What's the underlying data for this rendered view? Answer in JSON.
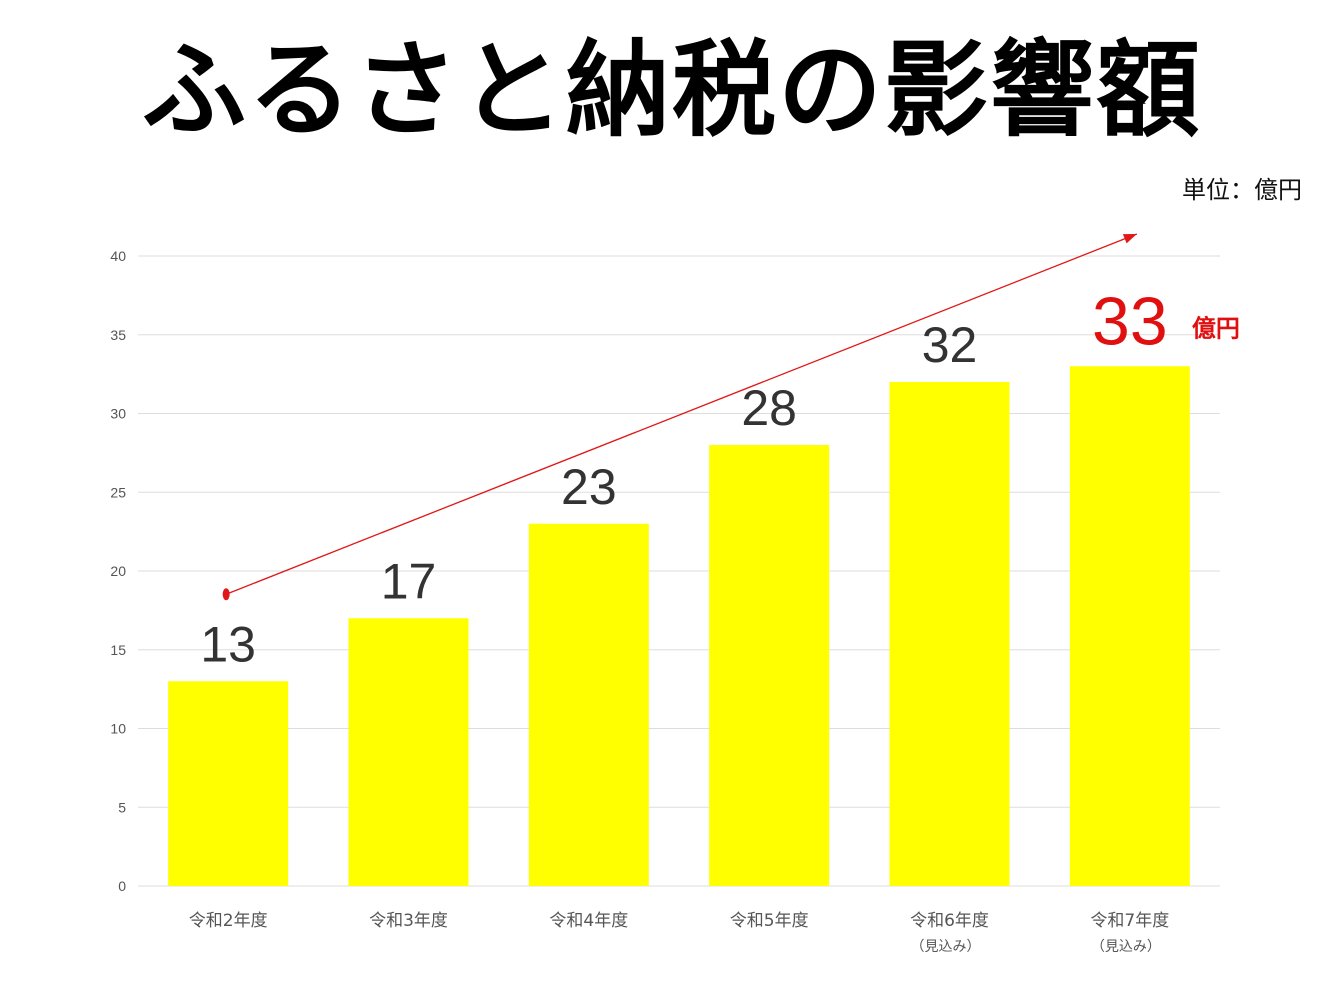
{
  "title": "ふるさと納税の影響額",
  "unit": "単位：億円",
  "colors": {
    "bar": "#ffff00",
    "trend_arrow": "#e01818",
    "highlight_label": "#e01010",
    "value_label": "#333333",
    "grid": "#dddddd",
    "axis_text": "#555555"
  },
  "chart_data": {
    "type": "bar",
    "categories": [
      "令和2年度",
      "令和3年度",
      "令和4年度",
      "令和5年度",
      "令和6年度",
      "令和7年度"
    ],
    "category_sublabels": [
      "",
      "",
      "",
      "",
      "（見込み）",
      "（見込み）"
    ],
    "values": [
      13,
      17,
      23,
      28,
      32,
      33
    ],
    "value_labels": [
      "13",
      "17",
      "23",
      "28",
      "32",
      "33"
    ],
    "highlight": {
      "index": 5,
      "suffix": "億円"
    },
    "yticks": [
      "0",
      "5",
      "10",
      "15",
      "20",
      "25",
      "30",
      "35",
      "40"
    ],
    "ylim": [
      0,
      40
    ],
    "grid": true,
    "legend": "none",
    "annotation": "red upward trend arrow from first bar to last bar"
  }
}
